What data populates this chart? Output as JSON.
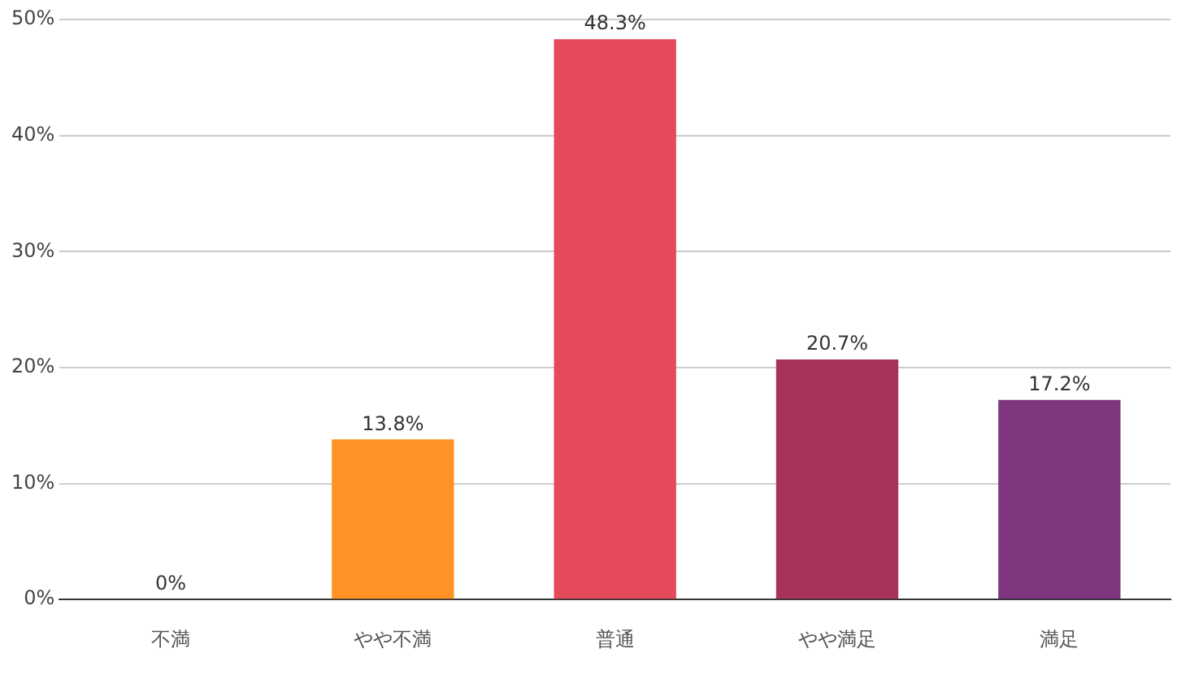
{
  "chart_data": {
    "type": "bar",
    "categories": [
      "不満",
      "やや不満",
      "普通",
      "やや満足",
      "満足"
    ],
    "values": [
      0,
      13.8,
      48.3,
      20.7,
      17.2
    ],
    "colors": [
      "#ff9326",
      "#ff9326",
      "#e54a5a",
      "#a8325a",
      "#7e367e"
    ],
    "value_labels": [
      "0%",
      "13.8%",
      "48.3%",
      "20.7%",
      "17.2%"
    ],
    "ylim": [
      0,
      50
    ],
    "yticks": [
      {
        "value": 0,
        "label": "0%"
      },
      {
        "value": 10,
        "label": "10%"
      },
      {
        "value": 20,
        "label": "20%"
      },
      {
        "value": 30,
        "label": "30%"
      },
      {
        "value": 40,
        "label": "40%"
      },
      {
        "value": 50,
        "label": "50%"
      }
    ],
    "grid": "y",
    "legend": false
  }
}
